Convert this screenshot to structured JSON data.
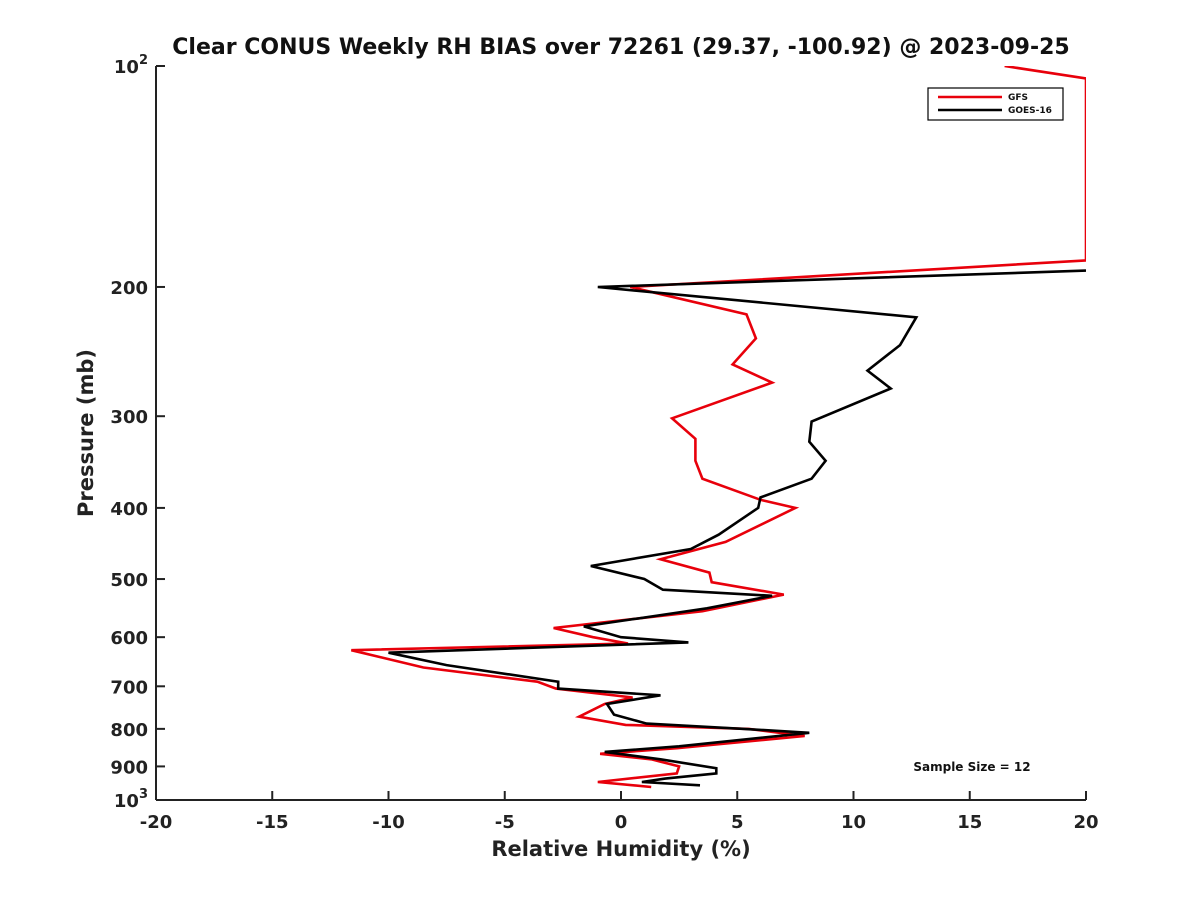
{
  "chart_data": {
    "type": "line",
    "title": "Clear CONUS Weekly RH BIAS over 72261 (29.37, -100.92) @ 2023-09-25",
    "xlabel": "Relative Humidity (%)",
    "ylabel": "Pressure (mb)",
    "xlim": [
      -20,
      20
    ],
    "ylim": [
      100,
      1000
    ],
    "y_scale": "log",
    "y_reversed": true,
    "grid": false,
    "legend_position": "top-right",
    "annotation": "Sample Size = 12",
    "x_ticks": [
      "-20",
      "-15",
      "-10",
      "-5",
      "0",
      "5",
      "10",
      "15",
      "20"
    ],
    "y_ticks": [
      {
        "value": 100,
        "base": "10",
        "exp": "2"
      },
      {
        "value": 200,
        "label": "200"
      },
      {
        "value": 300,
        "label": "300"
      },
      {
        "value": 400,
        "label": "400"
      },
      {
        "value": 500,
        "label": "500"
      },
      {
        "value": 600,
        "label": "600"
      },
      {
        "value": 700,
        "label": "700"
      },
      {
        "value": 800,
        "label": "800"
      },
      {
        "value": 900,
        "label": "900"
      },
      {
        "value": 1000,
        "base": "10",
        "exp": "3"
      }
    ],
    "series": [
      {
        "name": "GFS",
        "color": "#e8000b",
        "points": [
          [
            16.5,
            100
          ],
          [
            20,
            104
          ],
          [
            20,
            184
          ],
          [
            0.4,
            200
          ],
          [
            5.4,
            218
          ],
          [
            5.8,
            235
          ],
          [
            4.8,
            255
          ],
          [
            6.5,
            270
          ],
          [
            2.2,
            302
          ],
          [
            3.2,
            322
          ],
          [
            3.2,
            345
          ],
          [
            3.5,
            365
          ],
          [
            6,
            390
          ],
          [
            7.5,
            400
          ],
          [
            4.5,
            445
          ],
          [
            1.7,
            470
          ],
          [
            3.8,
            490
          ],
          [
            3.9,
            505
          ],
          [
            7,
            525
          ],
          [
            3.5,
            553
          ],
          [
            -2.9,
            583
          ],
          [
            -1.2,
            600
          ],
          [
            0.3,
            612
          ],
          [
            -11.6,
            625
          ],
          [
            -8.5,
            660
          ],
          [
            -3.6,
            690
          ],
          [
            -2.8,
            705
          ],
          [
            0.5,
            725
          ],
          [
            -0.7,
            740
          ],
          [
            -1.8,
            770
          ],
          [
            0.2,
            790
          ],
          [
            5.5,
            800
          ],
          [
            7.9,
            818
          ],
          [
            2.4,
            850
          ],
          [
            -0.9,
            865
          ],
          [
            1.3,
            880
          ],
          [
            2.5,
            900
          ],
          [
            2.4,
            920
          ],
          [
            -1,
            945
          ],
          [
            1.3,
            960
          ]
        ]
      },
      {
        "name": "GOES-16",
        "color": "#000000",
        "points": [
          [
            20,
            190
          ],
          [
            -1,
            200
          ],
          [
            12.7,
            220
          ],
          [
            12,
            240
          ],
          [
            10.6,
            260
          ],
          [
            11.6,
            275
          ],
          [
            8.2,
            305
          ],
          [
            8.1,
            325
          ],
          [
            8.8,
            345
          ],
          [
            8.2,
            365
          ],
          [
            6,
            387
          ],
          [
            5.9,
            400
          ],
          [
            4.2,
            435
          ],
          [
            3,
            455
          ],
          [
            -1.3,
            480
          ],
          [
            1,
            500
          ],
          [
            1.8,
            517
          ],
          [
            6.5,
            527
          ],
          [
            3.7,
            548
          ],
          [
            -1.6,
            580
          ],
          [
            0,
            600
          ],
          [
            2.9,
            610
          ],
          [
            -10,
            630
          ],
          [
            -7.5,
            655
          ],
          [
            -2.7,
            690
          ],
          [
            -2.7,
            705
          ],
          [
            1.7,
            720
          ],
          [
            -0.6,
            740
          ],
          [
            -0.3,
            765
          ],
          [
            1.1,
            787
          ],
          [
            5.3,
            800
          ],
          [
            8.1,
            810
          ],
          [
            2.5,
            845
          ],
          [
            -0.7,
            860
          ],
          [
            1.7,
            880
          ],
          [
            4.1,
            905
          ],
          [
            4.1,
            920
          ],
          [
            1.9,
            935
          ],
          [
            0.9,
            945
          ],
          [
            3.4,
            955
          ]
        ]
      }
    ]
  }
}
